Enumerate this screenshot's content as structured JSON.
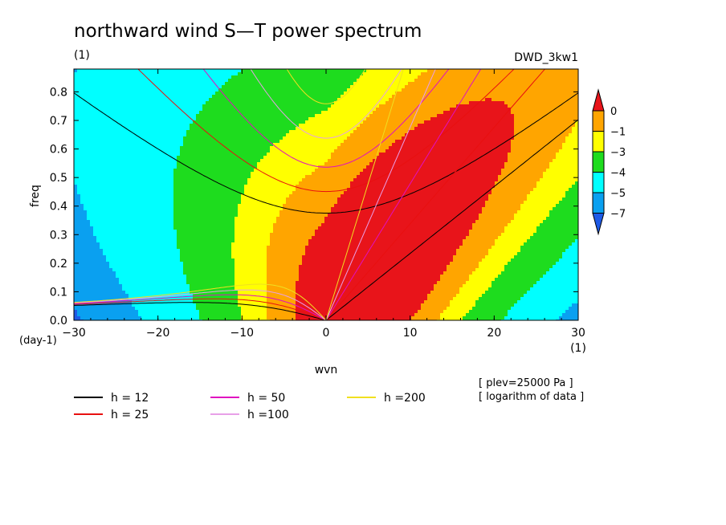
{
  "chart_data": {
    "type": "heatmap",
    "title": "northward wind S—T power spectrum",
    "subtitle_left": "(1)",
    "subtitle_right": "DWD_3kw1",
    "xlabel": "wvn",
    "ylabel": "freq",
    "x_unit_label": "(1)",
    "y_unit_label": "(day-1)",
    "xlim": [
      -30,
      30
    ],
    "ylim": [
      0,
      0.88
    ],
    "x_ticks": [
      "−30",
      "−20",
      "−10",
      "0",
      "10",
      "20",
      "30"
    ],
    "y_ticks": [
      "0.0",
      "0.1",
      "0.2",
      "0.3",
      "0.4",
      "0.5",
      "0.6",
      "0.7",
      "0.8"
    ],
    "colorbar": {
      "levels": [
        "0",
        "−1",
        "−3",
        "−4",
        "−5",
        "−7"
      ],
      "colors": [
        "#e8141a",
        "#ffa500",
        "#ffff00",
        "#1edc1e",
        "#00ffff",
        "#0aa0f0",
        "#1e5ae6"
      ]
    },
    "annotations": [
      "[ plev=25000 Pa ]",
      "[ logarithm of data ]"
    ],
    "series": [
      {
        "name": "h = 12",
        "color": "#000000",
        "h": 12
      },
      {
        "name": "h = 25",
        "color": "#e81010",
        "h": 25
      },
      {
        "name": "h = 50",
        "color": "#e010c0",
        "h": 50
      },
      {
        "name": "h =100",
        "color": "#e8a0e8",
        "h": 100
      },
      {
        "name": "h =200",
        "color": "#f0e020",
        "h": 200
      }
    ]
  }
}
